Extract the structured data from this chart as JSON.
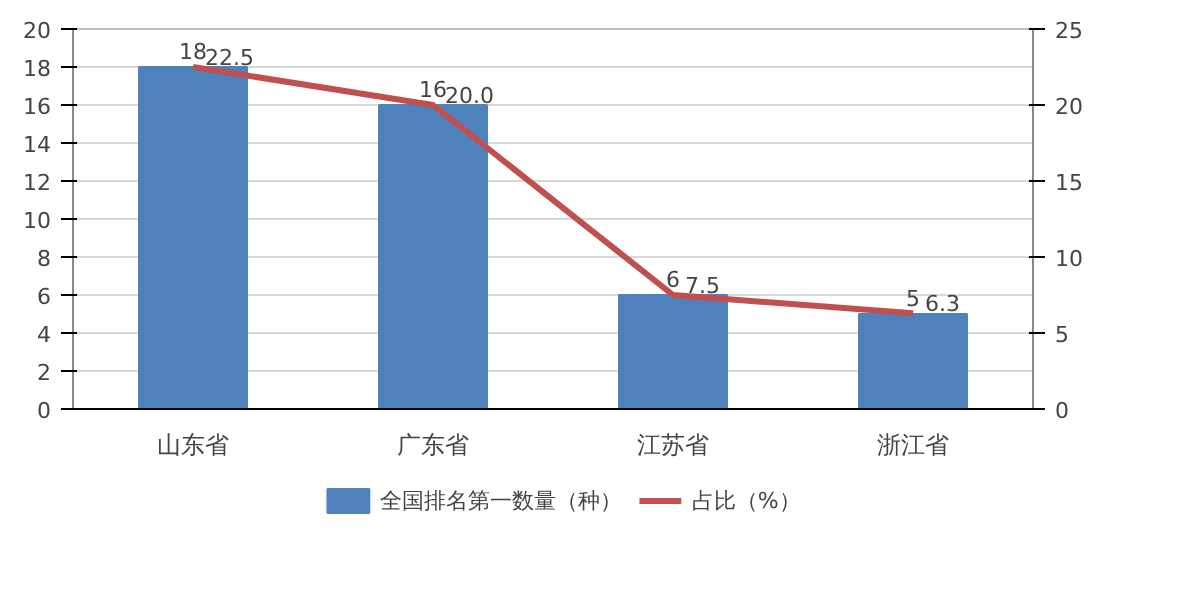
{
  "chart_data": {
    "type": "bar",
    "categories": [
      "山东省",
      "广东省",
      "江苏省",
      "浙江省"
    ],
    "series": [
      {
        "name": "全国排名第一数量（种）",
        "color": "#4f81bd",
        "values": [
          18,
          16,
          6,
          5
        ],
        "value_labels": [
          "18",
          "16",
          "6",
          "5"
        ]
      },
      {
        "name": "占比（%）",
        "type": "line",
        "axis": "y2",
        "color": "#c0504d",
        "values": [
          22.5,
          20.0,
          7.5,
          6.3
        ],
        "value_labels": [
          "22.5",
          "20.0",
          "7.5",
          "6.3"
        ]
      }
    ],
    "ylim": [
      0,
      20
    ],
    "yticks": [
      0,
      2,
      4,
      6,
      8,
      10,
      12,
      14,
      16,
      18,
      20
    ],
    "y2lim": [
      0,
      25
    ],
    "y2ticks": [
      0,
      5,
      10,
      15,
      20,
      25
    ],
    "grid": "y",
    "legend": "bottom",
    "marker": "none",
    "line_style": "solid"
  }
}
